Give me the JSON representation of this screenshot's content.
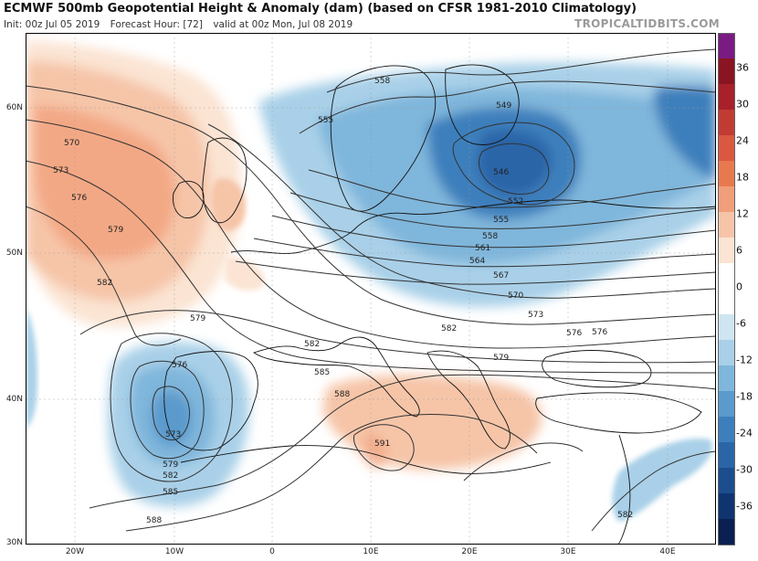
{
  "header": {
    "title": "ECMWF 500mb Geopotential Height & Anomaly (dam) (based on CFSR 1981-2010 Climatology)",
    "init": "Init: 00z Jul 05 2019",
    "forecast_hour": "Forecast Hour: [72]",
    "valid": "valid at 00z Mon, Jul 08 2019",
    "brand": "TROPICALTIDBITS.COM"
  },
  "axes": {
    "lat_labels": [
      "60N",
      "50N",
      "40N",
      "30N"
    ],
    "lon_labels": [
      "20W",
      "10W",
      "0",
      "10E",
      "20E",
      "30E",
      "40E"
    ]
  },
  "colorbar": {
    "labels": [
      "36",
      "30",
      "24",
      "18",
      "12",
      "6",
      "0",
      "-6",
      "-12",
      "-18",
      "-24",
      "-30",
      "-36"
    ],
    "colors": [
      "#7a1b84",
      "#8a1421",
      "#a8202a",
      "#c23b33",
      "#d9583f",
      "#e8794e",
      "#f19e7a",
      "#f6c5a8",
      "#fbe4d3",
      "#ffffff",
      "#ffffff",
      "#cfe5f2",
      "#a9d0e8",
      "#7fb6db",
      "#5a9acc",
      "#3d7fbc",
      "#2a65a8",
      "#1c4d8e",
      "#0f3470",
      "#0a1f52"
    ]
  },
  "contours": {
    "labels": [
      "558",
      "555",
      "549",
      "546",
      "552",
      "555",
      "558",
      "561",
      "564",
      "567",
      "570",
      "573",
      "576",
      "570",
      "573",
      "576",
      "579",
      "582",
      "582",
      "579",
      "576",
      "573",
      "579",
      "582",
      "585",
      "588",
      "585",
      "588",
      "591",
      "582",
      "582",
      "579",
      "576"
    ]
  }
}
